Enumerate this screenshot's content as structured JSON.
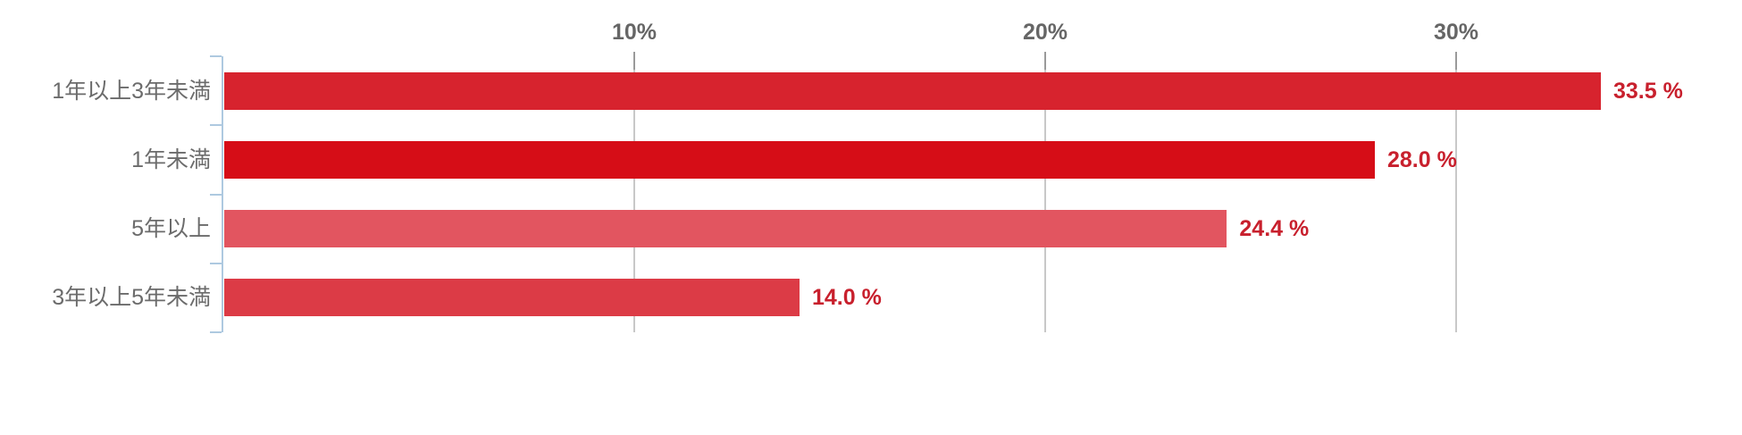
{
  "chart_data": {
    "type": "bar",
    "orientation": "horizontal",
    "categories": [
      "1年以上3年未満",
      "1年未満",
      "5年以上",
      "3年以上5年未満"
    ],
    "values": [
      33.5,
      28.0,
      24.4,
      14.0
    ],
    "value_labels": [
      "33.5 %",
      "28.0 %",
      "24.4 %",
      "14.0 %"
    ],
    "bar_colors": [
      "#d7232e",
      "#d60d17",
      "#e25560",
      "#dc3b46"
    ],
    "x_ticks": [
      {
        "value": 10,
        "label": "10%"
      },
      {
        "value": 20,
        "label": "20%"
      },
      {
        "value": 30,
        "label": "30%"
      }
    ],
    "x_min": 0,
    "x_max": 37,
    "grid": true,
    "axis_position": "top",
    "title": "",
    "xlabel": "",
    "ylabel": ""
  },
  "colors": {
    "background": "#ffffff",
    "gridline": "#c8c8c8",
    "x_tick_mark": "#9a9a9a",
    "x_tick_label": "#666666",
    "y_axis_line": "#aec9e0",
    "category_label": "#6b6b6b",
    "value_label": "#c8202d"
  }
}
